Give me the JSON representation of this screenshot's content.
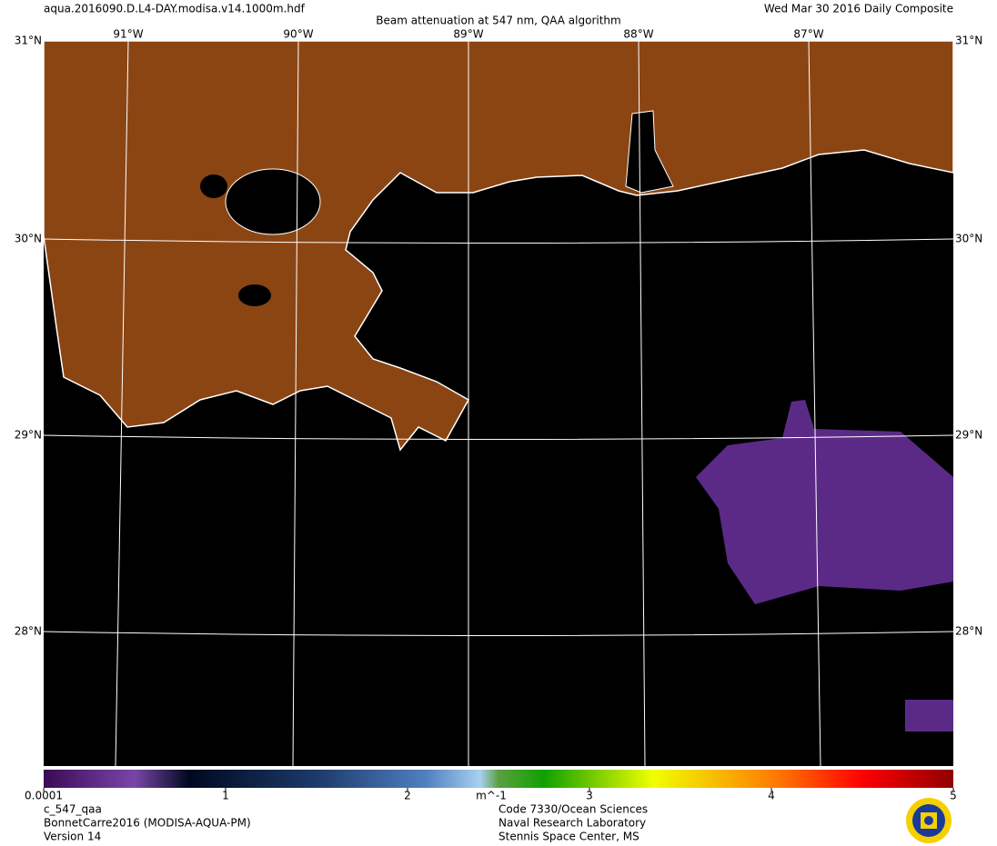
{
  "header": {
    "file": "aqua.2016090.D.L4-DAY.modisa.v14.1000m.hdf",
    "title": "Beam attenuation at 547 nm, QAA algorithm",
    "date": "Wed Mar 30 2016 Daily Composite"
  },
  "map": {
    "longitudes": [
      "91°W",
      "90°W",
      "89°W",
      "88°W",
      "87°W"
    ],
    "latitudes": [
      "31°N",
      "30°N",
      "29°N",
      "28°N"
    ]
  },
  "colorbar": {
    "range": [
      0,
      5
    ],
    "ticks": [
      0.0001,
      1,
      2,
      3,
      4,
      5
    ],
    "unit": "m^-1"
  },
  "footer": {
    "product": "c_547_qaa",
    "dataset": "BonnetCarre2016 (MODISA-AQUA-PM)",
    "version": "Version 14",
    "org": [
      "Code 7330/Ocean Sciences",
      "Naval Research Laboratory",
      "Stennis Space Center, MS"
    ]
  }
}
